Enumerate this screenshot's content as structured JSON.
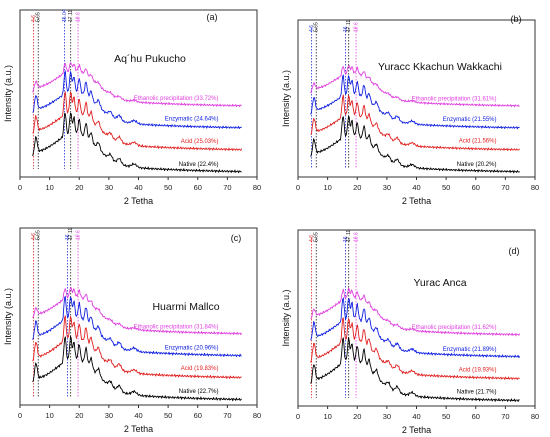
{
  "chart_data": [
    {
      "type": "line",
      "panel_label": "(a)",
      "title": "Aq´hu Pukucho",
      "xlabel": "2 Tetha",
      "ylabel": "Intensity (a.u.)",
      "xlim": [
        0,
        80
      ],
      "xticks": [
        0,
        10,
        20,
        30,
        40,
        50,
        60,
        70,
        80
      ],
      "peak_markers": [
        {
          "x": 4.6,
          "label": "4.6",
          "color": "#e02020"
        },
        {
          "x": 5.65,
          "label": "5.65",
          "color": "#202020"
        },
        {
          "x": 15.04,
          "label": "15.04",
          "color": "#2030e0"
        },
        {
          "x": 17.11,
          "label": "17.11",
          "color": "#202020"
        },
        {
          "x": 19.6,
          "label": "19.6",
          "color": "#e040e0"
        }
      ],
      "series": [
        {
          "name": "Native (22.4%)",
          "color": "#000000",
          "offset": 0
        },
        {
          "name": "Acid (25.03%)",
          "color": "#e02020",
          "offset": 1
        },
        {
          "name": "Enzymatic (24.64%)",
          "color": "#1020e0",
          "offset": 2
        },
        {
          "name": "Ethanolic precipitation (33.72%)",
          "color": "#e040e0",
          "offset": 3
        }
      ]
    },
    {
      "type": "line",
      "panel_label": "(b)",
      "title": "Yuracc Kkachun Wakkachi",
      "xlabel": "2 Tetha",
      "ylabel": "Intensity (a.u.)",
      "xlim": [
        0,
        80
      ],
      "xticks": [
        0,
        10,
        20,
        30,
        40,
        50,
        60,
        70,
        80
      ],
      "peak_markers": [
        {
          "x": 4.6,
          "label": "4.6",
          "color": "#2030e0"
        },
        {
          "x": 5.65,
          "label": "5.65",
          "color": "#202020"
        },
        {
          "x": 16,
          "label": "16",
          "color": "#2030e0"
        },
        {
          "x": 17.11,
          "label": "17.11",
          "color": "#202020"
        },
        {
          "x": 19.6,
          "label": "19.6",
          "color": "#e040e0"
        }
      ],
      "series": [
        {
          "name": "Native (20.2%)",
          "color": "#000000",
          "offset": 0
        },
        {
          "name": "Acid (21.56%)",
          "color": "#e02020",
          "offset": 1
        },
        {
          "name": "Enzymatic (21.55%)",
          "color": "#1020e0",
          "offset": 2
        },
        {
          "name": "Ethanolic precipitation (31.61%)",
          "color": "#e040e0",
          "offset": 3
        }
      ]
    },
    {
      "type": "line",
      "panel_label": "(c)",
      "title": "Huarmi Mallco",
      "xlabel": "2 Tetha",
      "ylabel": "Intensity (a.u.)",
      "xlim": [
        0,
        80
      ],
      "xticks": [
        0,
        10,
        20,
        30,
        40,
        50,
        60,
        70,
        80
      ],
      "peak_markers": [
        {
          "x": 4.6,
          "label": "4.6",
          "color": "#e02020"
        },
        {
          "x": 5.65,
          "label": "5.65",
          "color": "#202020"
        },
        {
          "x": 16,
          "label": "16",
          "color": "#2030e0"
        },
        {
          "x": 17.11,
          "label": "17.11",
          "color": "#202020"
        },
        {
          "x": 19.6,
          "label": "19.6",
          "color": "#e040e0"
        }
      ],
      "series": [
        {
          "name": "Native (22.7%)",
          "color": "#000000",
          "offset": 0
        },
        {
          "name": "Acid (19.83%)",
          "color": "#e02020",
          "offset": 1
        },
        {
          "name": "Enzymatic (20.96%)",
          "color": "#1020e0",
          "offset": 2
        },
        {
          "name": "Ethanolic precipitation (31.84%)",
          "color": "#e040e0",
          "offset": 3
        }
      ]
    },
    {
      "type": "line",
      "panel_label": "(d)",
      "title": "Yurac Anca",
      "xlabel": "2 Tetha",
      "ylabel": "Intensity (a.u.)",
      "xlim": [
        0,
        80
      ],
      "xticks": [
        0,
        10,
        20,
        30,
        40,
        50,
        60,
        70,
        80
      ],
      "peak_markers": [
        {
          "x": 4.6,
          "label": "4.6",
          "color": "#e02020"
        },
        {
          "x": 5.65,
          "label": "5.65",
          "color": "#202020"
        },
        {
          "x": 16,
          "label": "16",
          "color": "#2030e0"
        },
        {
          "x": 17.11,
          "label": "17.11",
          "color": "#202020"
        },
        {
          "x": 19.6,
          "label": "19.6",
          "color": "#e040e0"
        }
      ],
      "series": [
        {
          "name": "Native (21.7%)",
          "color": "#000000",
          "offset": 0
        },
        {
          "name": "Acid (19.93%)",
          "color": "#e02020",
          "offset": 1
        },
        {
          "name": "Enzymatic (21.89%)",
          "color": "#1020e0",
          "offset": 2
        },
        {
          "name": "Ethanolic precipitation (31.62%)",
          "color": "#e040e0",
          "offset": 3
        }
      ]
    }
  ]
}
